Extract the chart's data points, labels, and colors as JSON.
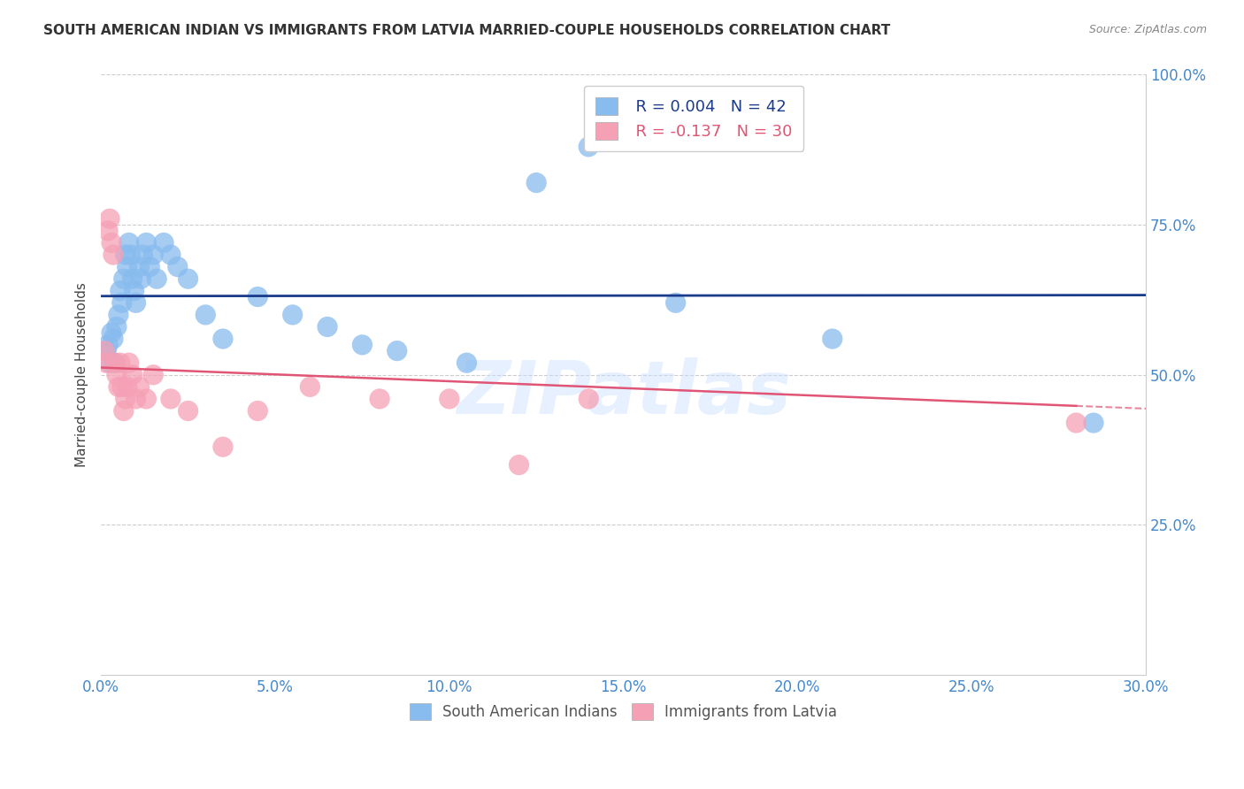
{
  "title": "SOUTH AMERICAN INDIAN VS IMMIGRANTS FROM LATVIA MARRIED-COUPLE HOUSEHOLDS CORRELATION CHART",
  "source": "Source: ZipAtlas.com",
  "ylabel": "Married-couple Households",
  "x_tick_labels": [
    "0.0%",
    "5.0%",
    "10.0%",
    "15.0%",
    "20.0%",
    "25.0%",
    "30.0%"
  ],
  "x_tick_vals": [
    0.0,
    5.0,
    10.0,
    15.0,
    20.0,
    25.0,
    30.0
  ],
  "y_tick_labels": [
    "25.0%",
    "50.0%",
    "75.0%",
    "100.0%"
  ],
  "y_tick_vals": [
    25.0,
    50.0,
    75.0,
    100.0
  ],
  "xlim": [
    0.0,
    30.0
  ],
  "ylim": [
    0.0,
    100.0
  ],
  "legend_label1": "South American Indians",
  "legend_label2": "Immigrants from Latvia",
  "R1": 0.004,
  "N1": 42,
  "R2": -0.137,
  "N2": 30,
  "color_blue": "#88BBEE",
  "color_pink": "#F5A0B5",
  "line_blue": "#1A3A8A",
  "line_pink": "#E05575",
  "tick_color": "#4488CC",
  "watermark": "ZIPatlas",
  "blue_x": [
    0.15,
    0.2,
    0.25,
    0.3,
    0.35,
    0.4,
    0.45,
    0.5,
    0.55,
    0.6,
    0.65,
    0.7,
    0.75,
    0.8,
    0.85,
    0.9,
    0.95,
    1.0,
    1.1,
    1.15,
    1.2,
    1.3,
    1.4,
    1.5,
    1.6,
    1.8,
    2.0,
    2.2,
    2.5,
    3.0,
    3.5,
    4.5,
    5.5,
    6.5,
    7.5,
    8.5,
    10.5,
    12.5,
    14.0,
    16.5,
    21.0,
    28.5
  ],
  "blue_y": [
    54.0,
    55.0,
    52.0,
    57.0,
    56.0,
    52.0,
    58.0,
    60.0,
    64.0,
    62.0,
    66.0,
    70.0,
    68.0,
    72.0,
    70.0,
    66.0,
    64.0,
    62.0,
    68.0,
    66.0,
    70.0,
    72.0,
    68.0,
    70.0,
    66.0,
    72.0,
    70.0,
    68.0,
    66.0,
    60.0,
    56.0,
    63.0,
    60.0,
    58.0,
    55.0,
    54.0,
    52.0,
    82.0,
    88.0,
    62.0,
    56.0,
    42.0
  ],
  "pink_x": [
    0.1,
    0.15,
    0.2,
    0.25,
    0.3,
    0.35,
    0.4,
    0.45,
    0.5,
    0.55,
    0.6,
    0.65,
    0.7,
    0.75,
    0.8,
    0.9,
    1.0,
    1.1,
    1.3,
    1.5,
    2.0,
    2.5,
    3.5,
    4.5,
    6.0,
    8.0,
    10.0,
    12.0,
    14.0,
    28.0
  ],
  "pink_y": [
    54.0,
    52.0,
    74.0,
    76.0,
    72.0,
    70.0,
    52.0,
    50.0,
    48.0,
    52.0,
    48.0,
    44.0,
    46.0,
    48.0,
    52.0,
    50.0,
    46.0,
    48.0,
    46.0,
    50.0,
    46.0,
    44.0,
    38.0,
    44.0,
    48.0,
    46.0,
    46.0,
    35.0,
    46.0,
    42.0
  ]
}
